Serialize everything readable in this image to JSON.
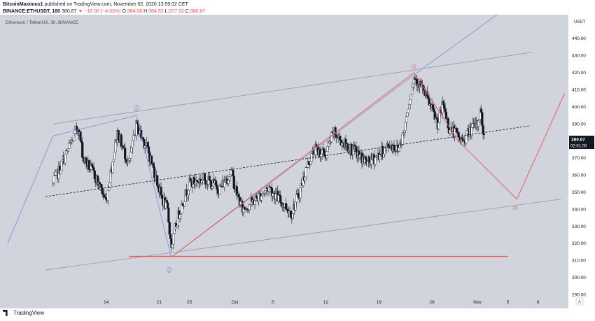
{
  "header": {
    "author": "BitcoinMaximus1",
    "published_text": "published on TradingView.com, November 02, 2020 13:59:02 CET",
    "symbol": "BINANCE:ETHUSDT, 180",
    "last_price": "380.67",
    "change": "▼ −16.00 (−4.03%)",
    "ohlc_o_label": "O:",
    "ohlc_o": "384.06",
    "ohlc_h_label": "H:",
    "ohlc_h": "384.52",
    "ohlc_l_label": "L:",
    "ohlc_l": "377.92",
    "ohlc_c_label": "C:",
    "ohlc_c": "380.67"
  },
  "chart_title": "Ethereum / TetherUS, 3h, BINANCE",
  "footer_brand": "TradingView",
  "colors": {
    "plot_bg": "#d1d4dc",
    "up": "#ffffff",
    "down": "#131722",
    "red": "#ef5350",
    "blue": "#7a8cd1",
    "gray": "#9598a1",
    "label_dark": "#131722"
  },
  "chart_data": {
    "type": "candlestick",
    "y_label": "USDT",
    "ylim": [
      282,
      454
    ],
    "x_ticks": [
      {
        "label": "14",
        "day": 14
      },
      {
        "label": "21",
        "day": 21
      },
      {
        "label": "25",
        "day": 25
      },
      {
        "label": "Oct",
        "day": 31
      },
      {
        "label": "5",
        "day": 36
      },
      {
        "label": "12",
        "day": 43
      },
      {
        "label": "19",
        "day": 50
      },
      {
        "label": "26",
        "day": 57
      },
      {
        "label": "Nov",
        "day": 63
      },
      {
        "label": "5",
        "day": 67
      },
      {
        "label": "9",
        "day": 71
      }
    ],
    "y_ticks": [
      290,
      300,
      310,
      320,
      330,
      340,
      350,
      360,
      370,
      380,
      390,
      400,
      410,
      420,
      430,
      440
    ],
    "price_label": "380.67",
    "countdown_label": "02:01:00",
    "anchors": [
      [
        7.0,
        355
      ],
      [
        9.5,
        380
      ],
      [
        10.3,
        389
      ],
      [
        11.0,
        370
      ],
      [
        12.5,
        360
      ],
      [
        14.0,
        345
      ],
      [
        15.5,
        385
      ],
      [
        17.0,
        366
      ],
      [
        18.0,
        389
      ],
      [
        19.5,
        375
      ],
      [
        20.5,
        360
      ],
      [
        21.3,
        347
      ],
      [
        22.1,
        340
      ],
      [
        22.6,
        318
      ],
      [
        23.5,
        336
      ],
      [
        25.0,
        355
      ],
      [
        27.0,
        358
      ],
      [
        29.0,
        352
      ],
      [
        30.5,
        362
      ],
      [
        31.2,
        350
      ],
      [
        32.0,
        340
      ],
      [
        33.5,
        345
      ],
      [
        35.5,
        353
      ],
      [
        37.0,
        345
      ],
      [
        38.5,
        338
      ],
      [
        39.5,
        350
      ],
      [
        40.5,
        365
      ],
      [
        41.5,
        375
      ],
      [
        43.0,
        372
      ],
      [
        44.0,
        385
      ],
      [
        45.5,
        378
      ],
      [
        47.0,
        373
      ],
      [
        48.5,
        367
      ],
      [
        50.0,
        372
      ],
      [
        51.5,
        378
      ],
      [
        52.5,
        375
      ],
      [
        53.3,
        385
      ],
      [
        53.8,
        400
      ],
      [
        54.7,
        418
      ],
      [
        55.8,
        410
      ],
      [
        56.8,
        400
      ],
      [
        57.8,
        390
      ],
      [
        58.5,
        402
      ],
      [
        59.2,
        388
      ],
      [
        60.0,
        385
      ],
      [
        61.0,
        380
      ],
      [
        62.0,
        386
      ],
      [
        63.0,
        390
      ],
      [
        63.4,
        398
      ],
      [
        63.9,
        380.67
      ]
    ],
    "annotations": [
      {
        "label": "1",
        "style": "circle-blue",
        "day": 18.0,
        "price": 399.5
      },
      {
        "label": "2",
        "style": "circle-blue",
        "day": 22.3,
        "price": 304.5
      },
      {
        "label": "(1)",
        "style": "red",
        "day": 54.6,
        "price": 424
      },
      {
        "label": "(2)",
        "style": "red",
        "day": 68.0,
        "price": 341
      }
    ],
    "lines": {
      "channel_upper": [
        [
          7.0,
          390
        ],
        [
          70.2,
          432
        ]
      ],
      "channel_mid": [
        [
          6.0,
          347.5
        ],
        [
          70.0,
          389
        ]
      ],
      "channel_lower": [
        [
          6.0,
          304.5
        ],
        [
          74.0,
          346
        ]
      ],
      "support": [
        [
          17.0,
          312.5
        ],
        [
          67.0,
          312.5
        ]
      ],
      "blue_path": [
        [
          1.0,
          320
        ],
        [
          7.0,
          383
        ],
        [
          18.0,
          395
        ],
        [
          22.6,
          312
        ],
        [
          55.0,
          420
        ],
        [
          69.0,
          465
        ]
      ],
      "red_wave1": [
        [
          22.6,
          312
        ],
        [
          54.6,
          420
        ]
      ],
      "red_wave2": [
        [
          54.6,
          420
        ],
        [
          60.5,
          380
        ],
        [
          68.2,
          346
        ],
        [
          74.5,
          408
        ]
      ]
    }
  }
}
